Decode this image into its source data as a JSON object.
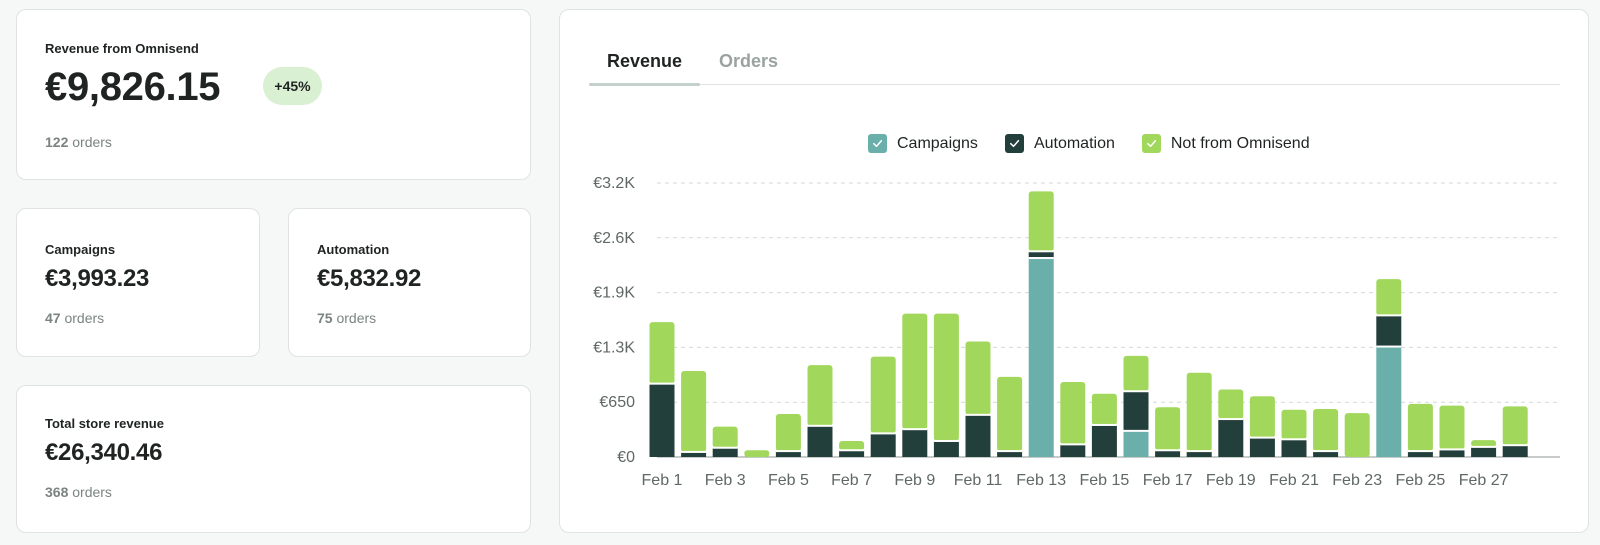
{
  "revenue_card": {
    "title": "Revenue from Omnisend",
    "value": "€9,826.15",
    "badge": "+45%",
    "orders_count": "122",
    "orders_label": "orders"
  },
  "campaigns_card": {
    "title": "Campaigns",
    "value": "€3,993.23",
    "orders_count": "47",
    "orders_label": "orders"
  },
  "automation_card": {
    "title": "Automation",
    "value": "€5,832.92",
    "orders_count": "75",
    "orders_label": "orders"
  },
  "total_card": {
    "title": "Total store revenue",
    "value": "€26,340.46",
    "orders_count": "368",
    "orders_label": "orders"
  },
  "tabs": [
    {
      "label": "Revenue",
      "active": true
    },
    {
      "label": "Orders",
      "active": false
    }
  ],
  "colors": {
    "campaigns": "#6aafa9",
    "automation": "#233f3b",
    "not_from_omnisend": "#a1d85b"
  },
  "chart_data": {
    "type": "bar",
    "stacked": true,
    "legend": [
      "Campaigns",
      "Automation",
      "Not from Omnisend"
    ],
    "legend_position": "top-center",
    "y_tick_labels": [
      "€0",
      "€650",
      "€1.3K",
      "€1.9K",
      "€2.6K",
      "€3.2K"
    ],
    "y_tick_values": [
      0,
      650,
      1300,
      1950,
      2600,
      3250
    ],
    "ylim": [
      0,
      3250
    ],
    "grid": true,
    "x_tick_labels": [
      "Feb 1",
      "Feb 3",
      "Feb 5",
      "Feb 7",
      "Feb 9",
      "Feb 11",
      "Feb 13",
      "Feb 15",
      "Feb 17",
      "Feb 19",
      "Feb 21",
      "Feb 23",
      "Feb 25",
      "Feb 27"
    ],
    "categories": [
      "Feb 1",
      "Feb 2",
      "Feb 3",
      "Feb 4",
      "Feb 5",
      "Feb 6",
      "Feb 7",
      "Feb 8",
      "Feb 9",
      "Feb 10",
      "Feb 11",
      "Feb 12",
      "Feb 13",
      "Feb 14",
      "Feb 15",
      "Feb 16",
      "Feb 17",
      "Feb 18",
      "Feb 19",
      "Feb 20",
      "Feb 21",
      "Feb 22",
      "Feb 23",
      "Feb 24",
      "Feb 25",
      "Feb 26",
      "Feb 27",
      "Feb 28"
    ],
    "series": [
      {
        "name": "Campaigns",
        "values": [
          0,
          0,
          0,
          0,
          0,
          0,
          0,
          0,
          0,
          0,
          0,
          0,
          2360,
          0,
          0,
          310,
          0,
          0,
          0,
          0,
          0,
          0,
          0,
          1310,
          0,
          0,
          0,
          0
        ]
      },
      {
        "name": "Automation",
        "values": [
          870,
          60,
          110,
          0,
          70,
          370,
          80,
          280,
          330,
          190,
          500,
          70,
          80,
          150,
          380,
          470,
          80,
          70,
          450,
          230,
          210,
          70,
          0,
          370,
          70,
          90,
          120,
          140
        ]
      },
      {
        "name": "Not from Omnisend",
        "values": [
          730,
          960,
          250,
          80,
          440,
          720,
          110,
          910,
          1370,
          1510,
          870,
          880,
          710,
          740,
          370,
          420,
          510,
          930,
          350,
          490,
          350,
          500,
          520,
          430,
          560,
          520,
          80,
          460
        ]
      }
    ]
  }
}
